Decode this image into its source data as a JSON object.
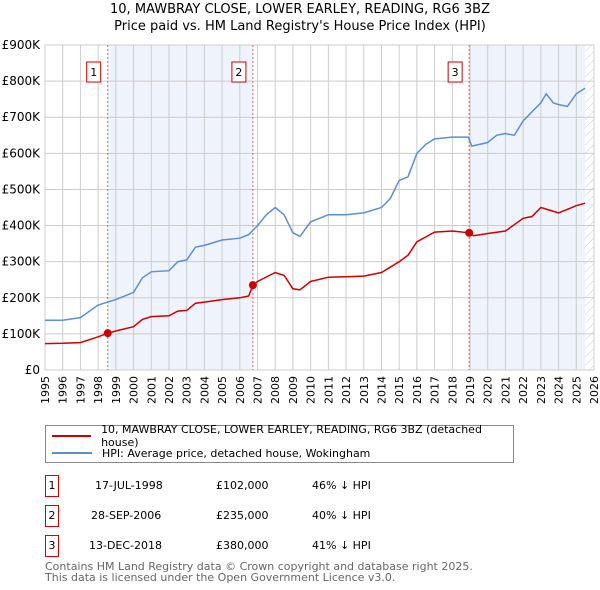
{
  "title": "10, MAWBRAY CLOSE, LOWER EARLEY, READING, RG6 3BZ",
  "subtitle": "Price paid vs. HM Land Registry's House Price Index (HPI)",
  "chart_data": {
    "type": "line",
    "title": "10, MAWBRAY CLOSE, LOWER EARLEY, READING, RG6 3BZ",
    "subtitle": "Price paid vs. HM Land Registry's House Price Index (HPI)",
    "xlim": [
      1995,
      2026
    ],
    "ylim": [
      0,
      900000
    ],
    "x_ticks": [
      "1995",
      "1996",
      "1997",
      "1998",
      "1999",
      "2000",
      "2001",
      "2002",
      "2003",
      "2004",
      "2005",
      "2006",
      "2007",
      "2008",
      "2009",
      "2010",
      "2011",
      "2012",
      "2013",
      "2014",
      "2015",
      "2016",
      "2017",
      "2018",
      "2019",
      "2020",
      "2021",
      "2022",
      "2023",
      "2024",
      "2025",
      "2026"
    ],
    "y_ticks": [
      {
        "v": 0,
        "l": "£0"
      },
      {
        "v": 100000,
        "l": "£100K"
      },
      {
        "v": 200000,
        "l": "£200K"
      },
      {
        "v": 300000,
        "l": "£300K"
      },
      {
        "v": 400000,
        "l": "£400K"
      },
      {
        "v": 500000,
        "l": "£500K"
      },
      {
        "v": 600000,
        "l": "£600K"
      },
      {
        "v": 700000,
        "l": "£700K"
      },
      {
        "v": 800000,
        "l": "£800K"
      },
      {
        "v": 900000,
        "l": "£900K"
      }
    ],
    "grid": true,
    "series": [
      {
        "name": "10, MAWBRAY CLOSE, LOWER EARLEY, READING, RG6 3BZ (detached house)",
        "color": "#cc0000",
        "x": [
          1995,
          1996,
          1997,
          1998,
          1998.54,
          1999,
          2000,
          2000.5,
          2001,
          2002,
          2002.5,
          2003,
          2003.5,
          2004,
          2005,
          2006,
          2006.5,
          2006.74,
          2007,
          2008,
          2008.5,
          2009,
          2009.4,
          2010,
          2011,
          2012,
          2013,
          2014,
          2015,
          2015.5,
          2016,
          2017,
          2018,
          2018.95,
          2019.2,
          2020,
          2021,
          2022,
          2022.5,
          2023,
          2024,
          2025,
          2025.5
        ],
        "y": [
          73000,
          74000,
          76000,
          92000,
          102000,
          108000,
          120000,
          140000,
          148000,
          150000,
          163000,
          165000,
          185000,
          188000,
          195000,
          200000,
          205000,
          235000,
          245000,
          270000,
          262000,
          225000,
          222000,
          245000,
          257000,
          258000,
          260000,
          270000,
          300000,
          318000,
          355000,
          382000,
          385000,
          380000,
          372000,
          378000,
          385000,
          420000,
          425000,
          450000,
          435000,
          455000,
          462000
        ]
      },
      {
        "name": "HPI: Average price, detached house, Wokingham",
        "color": "#5b8fd4",
        "x": [
          1995,
          1996,
          1997,
          1998,
          1999,
          2000,
          2000.5,
          2001,
          2002,
          2002.5,
          2003,
          2003.5,
          2004,
          2005,
          2006,
          2006.5,
          2007,
          2007.5,
          2008,
          2008.5,
          2009,
          2009.4,
          2010,
          2011,
          2012,
          2013,
          2014,
          2014.5,
          2015,
          2015.5,
          2016,
          2016.5,
          2017,
          2018,
          2018.9,
          2019.1,
          2020,
          2020.5,
          2021,
          2021.5,
          2022,
          2022.5,
          2023,
          2023.3,
          2023.7,
          2024,
          2024.5,
          2025,
          2025.5
        ],
        "y": [
          138000,
          138000,
          145000,
          180000,
          195000,
          215000,
          255000,
          272000,
          275000,
          300000,
          305000,
          340000,
          345000,
          360000,
          365000,
          375000,
          400000,
          430000,
          450000,
          430000,
          380000,
          370000,
          410000,
          430000,
          430000,
          435000,
          450000,
          475000,
          525000,
          535000,
          600000,
          625000,
          640000,
          645000,
          645000,
          620000,
          630000,
          650000,
          655000,
          650000,
          690000,
          715000,
          740000,
          765000,
          740000,
          735000,
          730000,
          765000,
          780000
        ]
      }
    ],
    "sales": [
      {
        "n": "1",
        "x": 1998.54,
        "y": 102000
      },
      {
        "n": "2",
        "x": 2006.74,
        "y": 235000
      },
      {
        "n": "3",
        "x": 2018.95,
        "y": 380000
      }
    ],
    "shaded": [
      [
        1998.54,
        2006.74
      ],
      [
        2018.95,
        2025.5
      ]
    ],
    "forecast_hatch_from": 2025.5,
    "legend": "bottom"
  },
  "legend": [
    {
      "label": "10, MAWBRAY CLOSE, LOWER EARLEY, READING, RG6 3BZ (detached house)",
      "color": "#cc0000"
    },
    {
      "label": "HPI: Average price, detached house, Wokingham",
      "color": "#5b8fd4"
    }
  ],
  "transactions": [
    {
      "num": "1",
      "date": "17-JUL-1998",
      "price": "£102,000",
      "hpi": "46% ↓ HPI"
    },
    {
      "num": "2",
      "date": "28-SEP-2006",
      "price": "£235,000",
      "hpi": "40% ↓ HPI"
    },
    {
      "num": "3",
      "date": "13-DEC-2018",
      "price": "£380,000",
      "hpi": "41% ↓ HPI"
    }
  ],
  "footer": [
    "Contains HM Land Registry data © Crown copyright and database right 2025.",
    "This data is licensed under the Open Government Licence v3.0."
  ]
}
